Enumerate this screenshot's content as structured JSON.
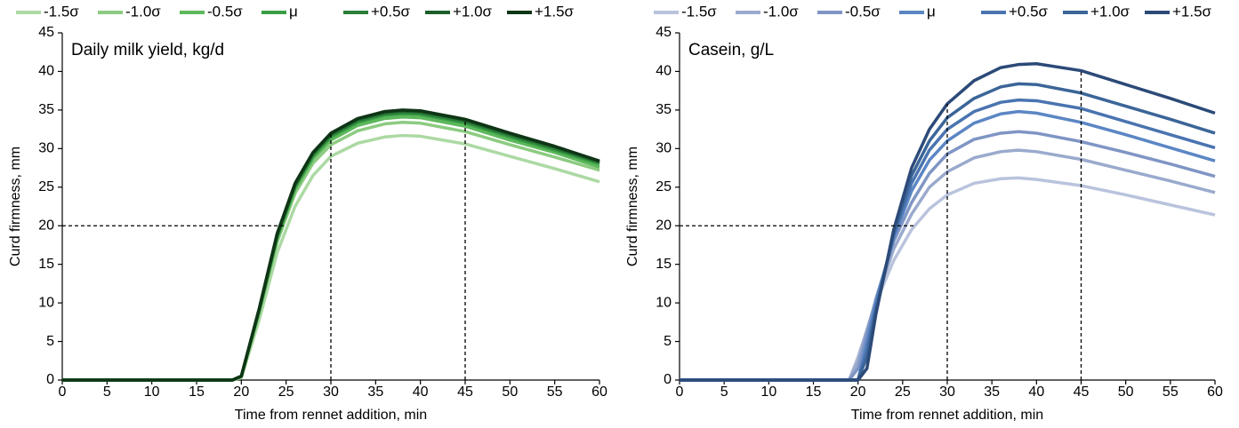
{
  "chart_data": [
    {
      "type": "line",
      "annotation": "Daily milk yield, kg/d",
      "x_label": "Time from rennet addition, min",
      "y_label": "Curd firmness, mm",
      "x": [
        0,
        10,
        19,
        20,
        22,
        24,
        26,
        28,
        30,
        33,
        36,
        38,
        40,
        45,
        50,
        55,
        60
      ],
      "series": [
        {
          "name": "-1.5σ",
          "color": "#acd9a3",
          "values": [
            0,
            0,
            0,
            0.3,
            7.8,
            16.5,
            22.5,
            26.5,
            29.0,
            30.7,
            31.5,
            31.7,
            31.6,
            30.6,
            29.0,
            27.4,
            25.7
          ]
        },
        {
          "name": "-1.0σ",
          "color": "#8ccb81",
          "values": [
            0,
            0,
            0,
            0.4,
            8.7,
            17.9,
            24.2,
            28.1,
            30.5,
            32.3,
            33.2,
            33.4,
            33.3,
            32.2,
            30.5,
            28.9,
            27.2
          ]
        },
        {
          "name": "-0.5σ",
          "color": "#5cb85a",
          "values": [
            0,
            0,
            0,
            0.5,
            8.9,
            18.3,
            24.7,
            28.7,
            31.1,
            33.0,
            33.9,
            34.1,
            34.0,
            32.9,
            31.1,
            29.5,
            27.6
          ]
        },
        {
          "name": "μ",
          "color": "#3a9e45",
          "values": [
            0,
            0,
            0,
            0.5,
            9.0,
            18.5,
            25.0,
            29.0,
            31.5,
            33.4,
            34.3,
            34.5,
            34.4,
            33.3,
            31.5,
            29.8,
            28.0
          ]
        },
        {
          "name": "+0.5σ",
          "color": "#2a7e38",
          "values": [
            0,
            0,
            0,
            0.5,
            9.1,
            18.7,
            25.2,
            29.2,
            31.7,
            33.6,
            34.5,
            34.7,
            34.6,
            33.5,
            31.7,
            30.0,
            28.2
          ]
        },
        {
          "name": "+1.0σ",
          "color": "#1b5e2a",
          "values": [
            0,
            0,
            0,
            0.5,
            9.2,
            18.8,
            25.3,
            29.4,
            31.9,
            33.8,
            34.7,
            34.9,
            34.8,
            33.7,
            31.9,
            30.2,
            28.3
          ]
        },
        {
          "name": "+1.5σ",
          "color": "#0e3515",
          "values": [
            0,
            0,
            0,
            0.5,
            9.3,
            19.0,
            25.5,
            29.5,
            32.0,
            33.9,
            34.8,
            35.0,
            34.9,
            33.8,
            32.0,
            30.3,
            28.4
          ]
        }
      ],
      "reference_lines": [
        {
          "x": [
            0,
            25
          ],
          "y": [
            20,
            20
          ]
        },
        {
          "x": [
            30,
            30
          ],
          "y": [
            0,
            32
          ]
        },
        {
          "x": [
            45,
            45
          ],
          "y": [
            0,
            33.5
          ]
        }
      ],
      "xlim": [
        0,
        60
      ],
      "ylim": [
        0,
        45
      ],
      "xticks": [
        0,
        5,
        10,
        15,
        20,
        25,
        30,
        35,
        40,
        45,
        50,
        55,
        60
      ],
      "yticks": [
        0,
        5,
        10,
        15,
        20,
        25,
        30,
        35,
        40,
        45
      ]
    },
    {
      "type": "line",
      "annotation": "Casein, g/L",
      "x_label": "Time from rennet addition, min",
      "y_label": "Curd firmness, mm",
      "x": [
        0,
        10,
        18,
        19,
        20,
        21,
        22,
        24,
        26,
        28,
        30,
        33,
        36,
        38,
        40,
        45,
        50,
        55,
        60
      ],
      "series": [
        {
          "name": "-1.5σ",
          "color": "#b9c3dd",
          "values": [
            0,
            0,
            0,
            0,
            3,
            6.5,
            10,
            15.5,
            19.5,
            22.2,
            24.0,
            25.5,
            26.1,
            26.2,
            26.0,
            25.2,
            24.0,
            22.7,
            21.4
          ]
        },
        {
          "name": "-1.0σ",
          "color": "#9aaacd",
          "values": [
            0,
            0,
            0,
            0,
            2.5,
            6.5,
            10.3,
            17,
            21.5,
            25,
            27,
            28.8,
            29.6,
            29.8,
            29.6,
            28.6,
            27.2,
            25.8,
            24.3
          ]
        },
        {
          "name": "-0.5σ",
          "color": "#7f95c4",
          "values": [
            0,
            0,
            0,
            0,
            1.5,
            6,
            10.5,
            18,
            23,
            26.8,
            29.3,
            31.2,
            32.0,
            32.2,
            32.0,
            30.9,
            29.5,
            28.0,
            26.4
          ]
        },
        {
          "name": "μ",
          "color": "#5b86c4",
          "values": [
            0,
            0,
            0,
            0,
            0,
            5,
            10,
            18.5,
            24.5,
            28.5,
            31.0,
            33.3,
            34.5,
            34.8,
            34.6,
            33.4,
            31.8,
            30.1,
            28.4
          ]
        },
        {
          "name": "+0.5σ",
          "color": "#4a74b0",
          "values": [
            0,
            0,
            0,
            0,
            0,
            4,
            9.5,
            18.8,
            25.5,
            29.8,
            32.5,
            34.8,
            36.0,
            36.3,
            36.2,
            35.2,
            33.5,
            31.8,
            30.1
          ]
        },
        {
          "name": "+1.0σ",
          "color": "#3b6598",
          "values": [
            0,
            0,
            0,
            0,
            0,
            3,
            9,
            19,
            26.5,
            31,
            34,
            36.5,
            38,
            38.4,
            38.3,
            37.2,
            35.5,
            33.8,
            32.0
          ]
        },
        {
          "name": "+1.5σ",
          "color": "#2c4a78",
          "values": [
            0,
            0,
            0,
            0,
            0,
            1.5,
            8.5,
            19.5,
            27.5,
            32.5,
            35.8,
            38.8,
            40.5,
            40.9,
            41.0,
            40.1,
            38.3,
            36.5,
            34.6
          ]
        }
      ],
      "reference_lines": [
        {
          "x": [
            0,
            26.5
          ],
          "y": [
            20,
            20
          ]
        },
        {
          "x": [
            30,
            30
          ],
          "y": [
            0,
            35.8
          ]
        },
        {
          "x": [
            45,
            45
          ],
          "y": [
            0,
            40.2
          ]
        }
      ],
      "xlim": [
        0,
        60
      ],
      "ylim": [
        0,
        45
      ],
      "xticks": [
        0,
        5,
        10,
        15,
        20,
        25,
        30,
        35,
        40,
        45,
        50,
        55,
        60
      ],
      "yticks": [
        0,
        5,
        10,
        15,
        20,
        25,
        30,
        35,
        40,
        45
      ]
    }
  ]
}
